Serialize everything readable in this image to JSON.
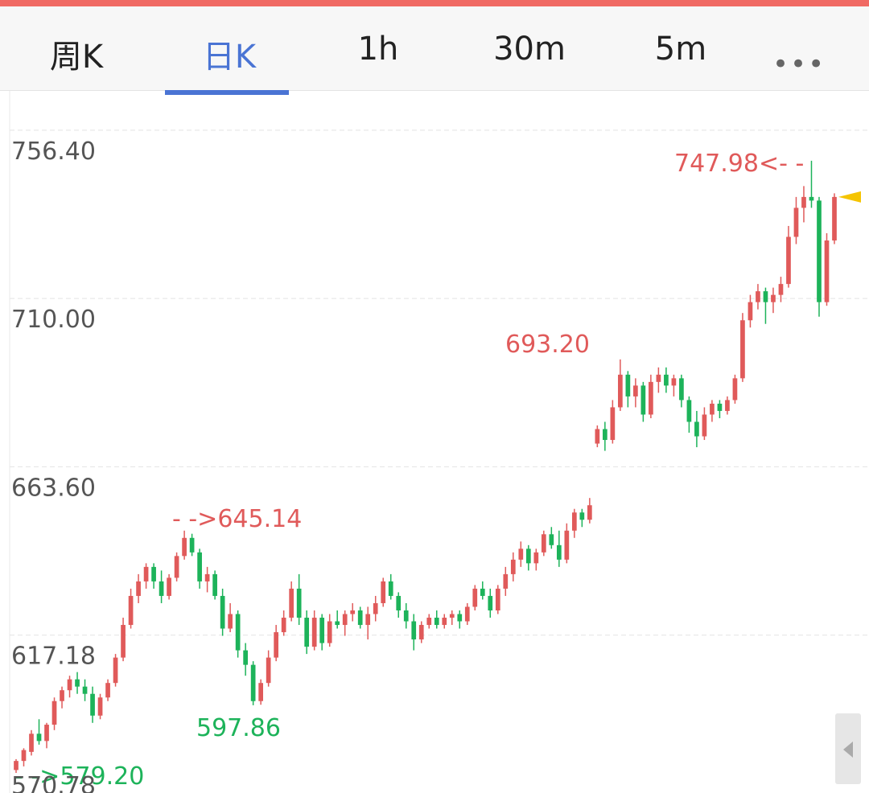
{
  "tabs": [
    "周K",
    "日K",
    "1h",
    "30m",
    "5m"
  ],
  "chart_data": {
    "type": "candlestick",
    "ylim": [
      570.78,
      766.8
    ],
    "yticks": [
      570.78,
      617.18,
      {
        "value": 663.6,
        "label": "663.60"
      },
      {
        "value": 710,
        "label": "710.00"
      },
      {
        "value": 756.4,
        "label": "756.40"
      }
    ],
    "grid": true,
    "up_color": "#e05a5a",
    "down_color": "#1db35a",
    "annotations": [
      "747.98<- -",
      "693.20",
      "- ->645.14",
      "597.86",
      "- ->579.20"
    ],
    "candles": [
      [
        580,
        583,
        579.2,
        582.5
      ],
      [
        582.5,
        586,
        581,
        585.5
      ],
      [
        585,
        591,
        584,
        590
      ],
      [
        590,
        594,
        587,
        588
      ],
      [
        588,
        593,
        586,
        592.5
      ],
      [
        592.5,
        600,
        591,
        599
      ],
      [
        599,
        603,
        597,
        602
      ],
      [
        602,
        606,
        600,
        605
      ],
      [
        605,
        607,
        601,
        603
      ],
      [
        603,
        605,
        599,
        601
      ],
      [
        601,
        603,
        593,
        595
      ],
      [
        595,
        601,
        594,
        600
      ],
      [
        600,
        605,
        599,
        604
      ],
      [
        604,
        612,
        603,
        611
      ],
      [
        611,
        622,
        610,
        620
      ],
      [
        620,
        630,
        619,
        628
      ],
      [
        628,
        634,
        626,
        632
      ],
      [
        632,
        637,
        630,
        636
      ],
      [
        636,
        637,
        630,
        632
      ],
      [
        632,
        635,
        626,
        628
      ],
      [
        628,
        634,
        627,
        633
      ],
      [
        633,
        640,
        632,
        639
      ],
      [
        639,
        646,
        638,
        644
      ],
      [
        644,
        645.14,
        639,
        640
      ],
      [
        640,
        641,
        630,
        632
      ],
      [
        632,
        636,
        629,
        634
      ],
      [
        634,
        635,
        627,
        628
      ],
      [
        628,
        630,
        617,
        619
      ],
      [
        619,
        626,
        618,
        623
      ],
      [
        623,
        624,
        611,
        613
      ],
      [
        613,
        615,
        606,
        609
      ],
      [
        609,
        610,
        597.86,
        599
      ],
      [
        599,
        605,
        598,
        604
      ],
      [
        604,
        613,
        603,
        611
      ],
      [
        611,
        620,
        610,
        618
      ],
      [
        618,
        624,
        617,
        622
      ],
      [
        622,
        632,
        621,
        630
      ],
      [
        630,
        634,
        620,
        622
      ],
      [
        622,
        624,
        612,
        614
      ],
      [
        614,
        624,
        613,
        622
      ],
      [
        622,
        623,
        613,
        615
      ],
      [
        615,
        623,
        614,
        621
      ],
      [
        621,
        624,
        619,
        620
      ],
      [
        620,
        624,
        617,
        623
      ],
      [
        623,
        626,
        621,
        624
      ],
      [
        624,
        625,
        619,
        620
      ],
      [
        620,
        625,
        616,
        623
      ],
      [
        623,
        628,
        621,
        626
      ],
      [
        626,
        633,
        625,
        632
      ],
      [
        632,
        634,
        627,
        628
      ],
      [
        628,
        629,
        622,
        624
      ],
      [
        624,
        626,
        619,
        621
      ],
      [
        621,
        623,
        613,
        616
      ],
      [
        616,
        621,
        615,
        620
      ],
      [
        620,
        623,
        619,
        622
      ],
      [
        622,
        624,
        619,
        620
      ],
      [
        620,
        623,
        619,
        622
      ],
      [
        622,
        624,
        620,
        623
      ],
      [
        623,
        624,
        619,
        621
      ],
      [
        621,
        626,
        620,
        625
      ],
      [
        625,
        631,
        624,
        630
      ],
      [
        630,
        632,
        627,
        628
      ],
      [
        628,
        630,
        622,
        624
      ],
      [
        624,
        631,
        623,
        630
      ],
      [
        630,
        636,
        628,
        634
      ],
      [
        634,
        640,
        632,
        638
      ],
      [
        638,
        643,
        636,
        641
      ],
      [
        641,
        642,
        635,
        637
      ],
      [
        637,
        641,
        635,
        640
      ],
      [
        640,
        646,
        639,
        645
      ],
      [
        645,
        647,
        641,
        642
      ],
      [
        642,
        646,
        636,
        638
      ],
      [
        638,
        648,
        637,
        646
      ],
      [
        646,
        652,
        644,
        651
      ],
      [
        651,
        652,
        647,
        649
      ],
      [
        649,
        655,
        648,
        653
      ],
      [
        670,
        675,
        669,
        674
      ],
      [
        674,
        676,
        668,
        671
      ],
      [
        671,
        682,
        670,
        680
      ],
      [
        680,
        693.2,
        679,
        689
      ],
      [
        689,
        690,
        680,
        683
      ],
      [
        683,
        688,
        680,
        686
      ],
      [
        686,
        687,
        676,
        678
      ],
      [
        678,
        689,
        677,
        687
      ],
      [
        687,
        691,
        684,
        689
      ],
      [
        689,
        691,
        684,
        686
      ],
      [
        686,
        689,
        683,
        688
      ],
      [
        688,
        689,
        680,
        682
      ],
      [
        682,
        683,
        673,
        676
      ],
      [
        676,
        679,
        669,
        672
      ],
      [
        672,
        680,
        671,
        678
      ],
      [
        678,
        682,
        676,
        681
      ],
      [
        681,
        682,
        677,
        679
      ],
      [
        679,
        683,
        678,
        682
      ],
      [
        682,
        689,
        681,
        688
      ],
      [
        688,
        706,
        687,
        704
      ],
      [
        704,
        711,
        702,
        709
      ],
      [
        709,
        714,
        707,
        712
      ],
      [
        712,
        713,
        703,
        709
      ],
      [
        709,
        713,
        706,
        711
      ],
      [
        711,
        716,
        709,
        714
      ],
      [
        714,
        730,
        713,
        727
      ],
      [
        727,
        738,
        725,
        735
      ],
      [
        735,
        741,
        731,
        738
      ],
      [
        738,
        747.98,
        735,
        737
      ],
      [
        737,
        738,
        705,
        709
      ],
      [
        709,
        728,
        708,
        726
      ],
      [
        726,
        739,
        725,
        738
      ]
    ]
  }
}
